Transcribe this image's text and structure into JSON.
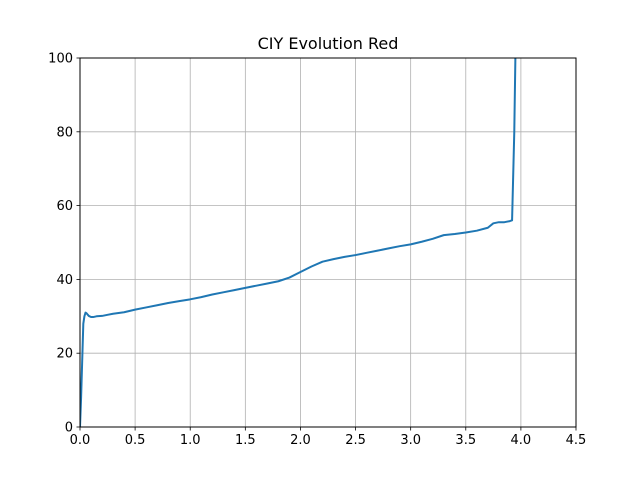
{
  "chart_data": {
    "type": "line",
    "title": "CIY Evolution Red",
    "xlabel": "",
    "ylabel": "",
    "xlim": [
      0,
      4.5
    ],
    "ylim": [
      0,
      100
    ],
    "xticks": [
      0.0,
      0.5,
      1.0,
      1.5,
      2.0,
      2.5,
      3.0,
      3.5,
      4.0,
      4.5
    ],
    "xtick_labels": [
      "0.0",
      "0.5",
      "1.0",
      "1.5",
      "2.0",
      "2.5",
      "3.0",
      "3.5",
      "4.0",
      "4.5"
    ],
    "yticks": [
      0,
      20,
      40,
      60,
      80,
      100
    ],
    "ytick_labels": [
      "0",
      "20",
      "40",
      "60",
      "80",
      "100"
    ],
    "grid": true,
    "legend": "none",
    "series": [
      {
        "color": "#1f77b4",
        "x": [
          0.0,
          0.01,
          0.02,
          0.03,
          0.04,
          0.05,
          0.06,
          0.08,
          0.1,
          0.12,
          0.15,
          0.2,
          0.25,
          0.3,
          0.4,
          0.5,
          0.6,
          0.7,
          0.8,
          0.9,
          1.0,
          1.1,
          1.2,
          1.3,
          1.4,
          1.5,
          1.6,
          1.7,
          1.8,
          1.9,
          2.0,
          2.1,
          2.2,
          2.3,
          2.4,
          2.5,
          2.6,
          2.7,
          2.8,
          2.9,
          3.0,
          3.1,
          3.2,
          3.3,
          3.4,
          3.5,
          3.6,
          3.7,
          3.75,
          3.8,
          3.85,
          3.9,
          3.92,
          3.94,
          3.95
        ],
        "y": [
          0,
          8,
          18,
          28,
          30,
          31,
          30.8,
          30.1,
          29.8,
          29.8,
          30.0,
          30.1,
          30.4,
          30.7,
          31.1,
          31.8,
          32.4,
          33.0,
          33.6,
          34.1,
          34.6,
          35.2,
          35.9,
          36.5,
          37.1,
          37.7,
          38.3,
          38.9,
          39.5,
          40.5,
          42.0,
          43.5,
          44.8,
          45.5,
          46.1,
          46.6,
          47.2,
          47.8,
          48.4,
          49.0,
          49.5,
          50.2,
          51.0,
          52.0,
          52.3,
          52.7,
          53.2,
          54.0,
          55.2,
          55.5,
          55.5,
          55.8,
          56.0,
          80.0,
          100.0
        ]
      }
    ]
  }
}
